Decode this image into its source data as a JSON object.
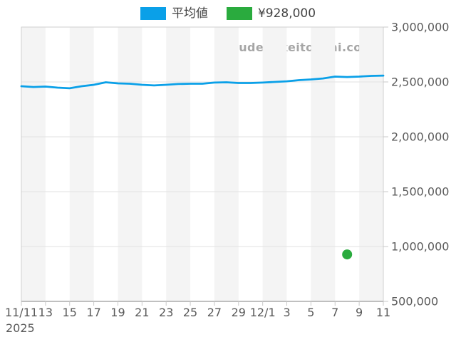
{
  "legend": {
    "items": [
      {
        "label": "平均値",
        "color": "#0aa0e8"
      },
      {
        "label": "¥928,000",
        "color": "#2aab3e"
      }
    ]
  },
  "watermark": {
    "text": "udedokeitoushi.com"
  },
  "chart_data": {
    "type": "line",
    "title": "",
    "xlabel": "",
    "ylabel": "",
    "x": [
      "11/11",
      "11/12",
      "11/13",
      "11/14",
      "11/15",
      "11/16",
      "11/17",
      "11/18",
      "11/19",
      "11/20",
      "11/21",
      "11/22",
      "11/23",
      "11/24",
      "11/25",
      "11/26",
      "11/27",
      "11/28",
      "11/29",
      "11/30",
      "12/1",
      "12/2",
      "12/3",
      "12/4",
      "12/5",
      "12/6",
      "12/7",
      "12/8",
      "12/9",
      "12/10",
      "12/11"
    ],
    "x_tick_labels": [
      "11/11",
      "13",
      "15",
      "17",
      "19",
      "21",
      "23",
      "25",
      "27",
      "29",
      "12/1",
      "3",
      "5",
      "7",
      "9",
      "11"
    ],
    "x_secondary_label": "2025",
    "y_ticks": [
      500000,
      1000000,
      1500000,
      2000000,
      2500000,
      3000000
    ],
    "y_tick_labels": [
      "500,000",
      "1,000,000",
      "1,500,000",
      "2,000,000",
      "2,500,000",
      "3,000,000"
    ],
    "ylim": [
      500000,
      3000000
    ],
    "grid": "horizontal",
    "background": "alternating vertical stripes per 2-day tick interval",
    "legend_position": "top-center",
    "series": [
      {
        "name": "平均値",
        "type": "line",
        "color": "#0aa0e8",
        "values": [
          2461000,
          2454000,
          2458000,
          2448000,
          2442000,
          2461000,
          2474000,
          2497000,
          2487000,
          2484000,
          2474000,
          2468000,
          2474000,
          2481000,
          2484000,
          2484000,
          2494000,
          2497000,
          2490000,
          2490000,
          2494000,
          2500000,
          2506000,
          2516000,
          2523000,
          2532000,
          2549000,
          2545000,
          2549000,
          2555000,
          2558000
        ]
      },
      {
        "name": "¥928,000",
        "type": "scatter",
        "color": "#2aab3e",
        "points": [
          {
            "x": "12/8",
            "value": 928000
          }
        ]
      }
    ]
  },
  "colors": {
    "stripe": "#f4f4f4",
    "grid": "#e2e2e2",
    "border": "#cfcfcf",
    "axis": "#9a9a9a",
    "tick": "#c9c9c9",
    "label_text": "#5a5a5a"
  }
}
